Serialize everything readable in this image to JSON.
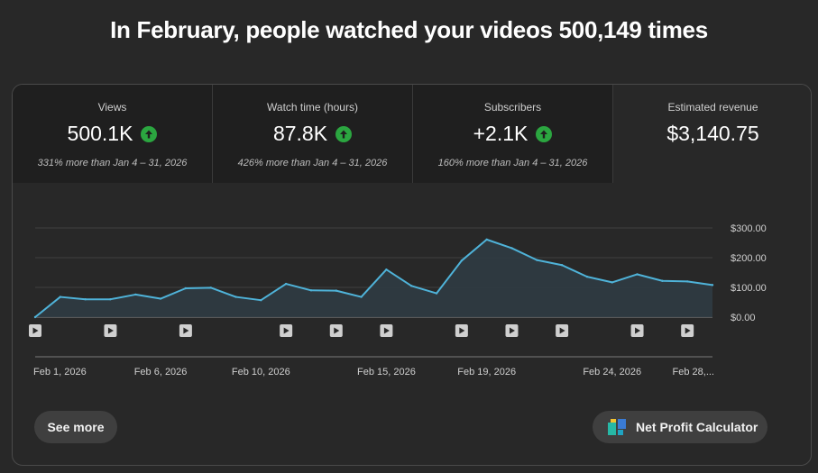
{
  "headline": "In February, people watched your videos 500,149 times",
  "metrics": [
    {
      "label": "Views",
      "value": "500.1K",
      "trend": "up",
      "compare": "331% more than Jan 4 – 31, 2026"
    },
    {
      "label": "Watch time (hours)",
      "value": "87.8K",
      "trend": "up",
      "compare": "426% more than Jan 4 – 31, 2026"
    },
    {
      "label": "Subscribers",
      "value": "+2.1K",
      "trend": "up",
      "compare": "160% more than Jan 4 – 31, 2026"
    },
    {
      "label": "Estimated revenue",
      "value": "$3,140.75"
    }
  ],
  "chart_data": {
    "type": "area",
    "series_name": "Estimated revenue",
    "x": [
      "Feb 1",
      "Feb 2",
      "Feb 3",
      "Feb 4",
      "Feb 5",
      "Feb 6",
      "Feb 7",
      "Feb 8",
      "Feb 9",
      "Feb 10",
      "Feb 11",
      "Feb 12",
      "Feb 13",
      "Feb 14",
      "Feb 15",
      "Feb 16",
      "Feb 17",
      "Feb 18",
      "Feb 19",
      "Feb 20",
      "Feb 21",
      "Feb 22",
      "Feb 23",
      "Feb 24",
      "Feb 25",
      "Feb 26",
      "Feb 27",
      "Feb 28"
    ],
    "values": [
      0,
      68,
      60,
      60,
      76,
      62,
      97,
      99,
      68,
      57,
      112,
      90,
      89,
      68,
      160,
      105,
      80,
      190,
      261,
      232,
      192,
      175,
      136,
      117,
      144,
      122,
      120,
      108
    ],
    "ylim": [
      0,
      300
    ],
    "yticks": [
      "$0.00",
      "$100.00",
      "$200.00",
      "$300.00"
    ],
    "ytick_values": [
      0,
      100,
      200,
      300
    ],
    "xticks": [
      "Feb 1, 2026",
      "Feb 6, 2026",
      "Feb 10, 2026",
      "Feb 15, 2026",
      "Feb 19, 2026",
      "Feb 24, 2026",
      "Feb 28,..."
    ],
    "xtick_days": [
      1,
      6,
      10,
      15,
      19,
      24,
      28
    ],
    "video_marker_days": [
      1,
      4,
      7,
      11,
      13,
      15,
      18,
      20,
      22,
      25,
      27
    ],
    "line_color": "#4fb3d9",
    "fill_color": "#2f3b42",
    "grid": true
  },
  "buttons": {
    "see_more": "See more",
    "net_profit": "Net Profit Calculator"
  },
  "colors": {
    "trend_up": "#2ba640"
  }
}
